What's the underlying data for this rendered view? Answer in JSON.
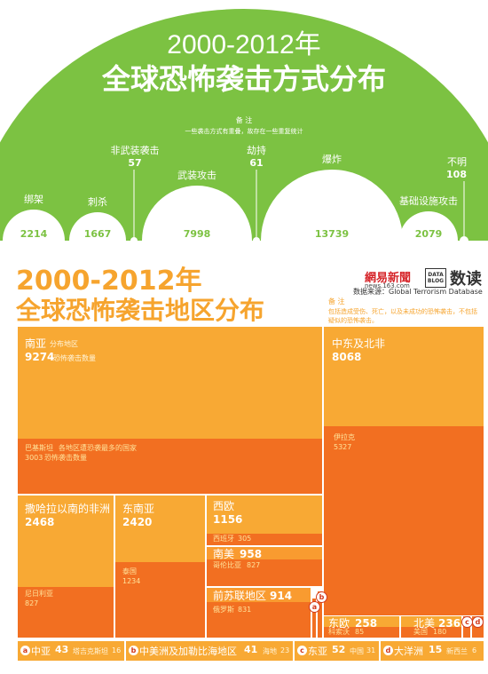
{
  "colors": {
    "green": "#7cc242",
    "white": "#ffffff",
    "orange_light": "#f8a934",
    "orange_dark": "#f26f21"
  },
  "top": {
    "title_line1": "2000-2012年",
    "title_line2": "全球恐怖袭击方式分布",
    "note_title": "备  注",
    "note_text": "一些袭击方式有重叠，故存在一些重复统计"
  },
  "chart_data": [
    {
      "type": "bar",
      "title": "2000-2012年 全球恐怖袭击方式分布",
      "categories": [
        "绑架",
        "刺杀",
        "非武装袭击",
        "武装攻击",
        "劫持",
        "爆炸",
        "基础设施攻击",
        "不明"
      ],
      "values": [
        2214,
        1667,
        57,
        7998,
        61,
        13739,
        2079,
        108
      ]
    },
    {
      "type": "treemap",
      "title": "2000-2012年 全球恐怖袭击地区分布",
      "regions": [
        {
          "name": "南亚",
          "value": 9274,
          "top_country": "巴基斯坦",
          "top_value": 3003
        },
        {
          "name": "中东及北非",
          "value": 8068,
          "top_country": "伊拉克",
          "top_value": 5327
        },
        {
          "name": "撒哈拉以南的非洲",
          "value": 2468,
          "top_country": "尼日利亚",
          "top_value": 827
        },
        {
          "name": "东南亚",
          "value": 2420,
          "top_country": "泰国",
          "top_value": 1234
        },
        {
          "name": "西欧",
          "value": 1156,
          "top_country": "西班牙",
          "top_value": 305
        },
        {
          "name": "南美",
          "value": 958,
          "top_country": "哥伦比亚",
          "top_value": 827
        },
        {
          "name": "前苏联地区",
          "value": 914,
          "top_country": "俄罗斯",
          "top_value": 831
        },
        {
          "name": "东欧",
          "value": 258,
          "top_country": "科索沃",
          "top_value": 85
        },
        {
          "name": "北美",
          "value": 236,
          "top_country": "美国",
          "top_value": 180
        },
        {
          "name": "中亚",
          "value": 43,
          "top_country": "塔吉克斯坦",
          "top_value": 16
        },
        {
          "name": "中美洲及加勒比海地区",
          "value": 41,
          "top_country": "海地",
          "top_value": 23
        },
        {
          "name": "东亚",
          "value": 52,
          "top_country": "中国",
          "top_value": 31
        },
        {
          "name": "大洋洲",
          "value": 15,
          "top_country": "新西兰",
          "top_value": 6
        }
      ]
    }
  ],
  "bottom": {
    "title_line1": "2000-2012年",
    "title_line2": "全球恐怖袭击地区分布",
    "logo_netease": "網易新聞",
    "logo_site": "news.163.com",
    "logo_databox": "DATA BLOG",
    "logo_shudu": "数读",
    "source": "数据来源：Global Terrorism Database",
    "note_title": "备  注",
    "note_text": "包括造成受伤、死亡，以及未成功的恐怖袭击，不包括疑似的恐怖袭击。",
    "suffix_region": "分布地区",
    "suffix_count": "恐怖袭击数量",
    "suffix_top_country": "各地区遭恐袭最多的国家",
    "suffix_top_count": "恐怖袭击数量",
    "badges": [
      "a",
      "b",
      "c",
      "d"
    ]
  }
}
